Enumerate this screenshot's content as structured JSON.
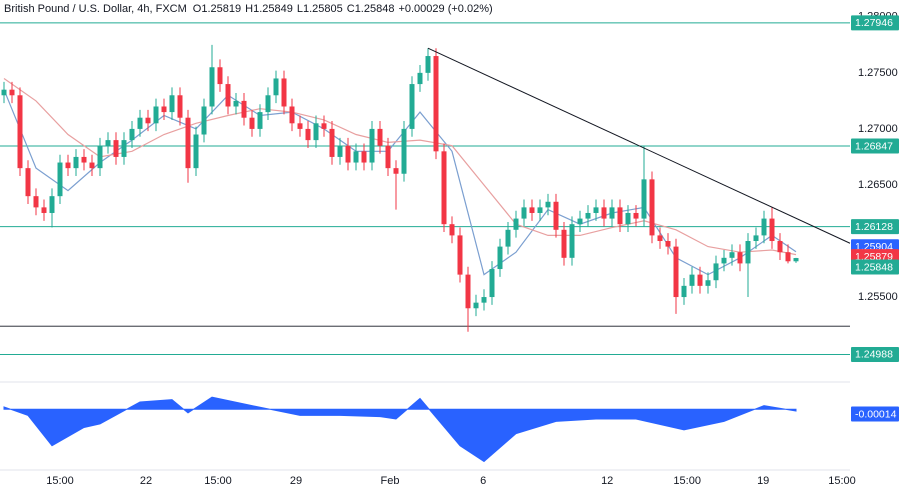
{
  "chart_data": {
    "type": "candlestick",
    "title": "British Pound / U.S. Dollar, 4h, FXCM",
    "ohlc_labels": [
      "O",
      "H",
      "L",
      "C"
    ],
    "change": "+0.00029 (+0.02%)",
    "up_color": "#22ab94",
    "down_color": "#f23645",
    "open": [
      1.273,
      1.2735,
      1.273,
      1.2665,
      1.264,
      1.263,
      1.2625,
      1.264,
      1.267,
      1.2665,
      1.2675,
      1.267,
      1.2665,
      1.2685,
      1.269,
      1.2675,
      1.269,
      1.27,
      1.271,
      1.2705,
      1.272,
      1.2715,
      1.273,
      1.271,
      1.2665,
      1.2695,
      1.272,
      1.2755,
      1.274,
      1.272,
      1.2725,
      1.271,
      1.27,
      1.2715,
      1.273,
      1.2745,
      1.272,
      1.2705,
      1.27,
      1.269,
      1.2705,
      1.27,
      1.2675,
      1.2685,
      1.267,
      1.268,
      1.267,
      1.27,
      1.2685,
      1.2665,
      1.266,
      1.27,
      1.274,
      1.275,
      1.2765,
      1.268,
      1.2615,
      1.2605,
      1.257,
      1.254,
      1.2545,
      1.255,
      1.2575,
      1.2595,
      1.261,
      1.262,
      1.263,
      1.2625,
      1.263,
      1.2635,
      1.261,
      1.2585,
      1.2615,
      1.262,
      1.2625,
      1.263,
      1.262,
      1.263,
      1.2615,
      1.2625,
      1.262,
      1.2655,
      1.2605,
      1.26,
      1.2595,
      1.255,
      1.256,
      1.257,
      1.256,
      1.2565,
      1.258,
      1.2585,
      1.259,
      1.258,
      1.26,
      1.2605,
      1.262,
      1.26,
      1.259,
      1.25819
    ],
    "high": [
      1.2742,
      1.2742,
      1.2737,
      1.2672,
      1.2647,
      1.2637,
      1.2647,
      1.2677,
      1.2677,
      1.2682,
      1.2682,
      1.2677,
      1.2692,
      1.2697,
      1.2697,
      1.2697,
      1.2707,
      1.2717,
      1.2717,
      1.2727,
      1.2727,
      1.2737,
      1.2737,
      1.2717,
      1.2702,
      1.2727,
      1.2775,
      1.2762,
      1.2747,
      1.2732,
      1.2732,
      1.2717,
      1.2722,
      1.2737,
      1.2752,
      1.2752,
      1.2727,
      1.2712,
      1.2707,
      1.2712,
      1.2712,
      1.2707,
      1.2692,
      1.2692,
      1.2687,
      1.2687,
      1.2707,
      1.2707,
      1.2692,
      1.2672,
      1.2707,
      1.2747,
      1.2757,
      1.2772,
      1.2772,
      1.2687,
      1.2622,
      1.2612,
      1.2577,
      1.2552,
      1.2557,
      1.2582,
      1.2602,
      1.2617,
      1.2627,
      1.2637,
      1.2637,
      1.2637,
      1.2642,
      1.2642,
      1.2617,
      1.2622,
      1.2627,
      1.2632,
      1.2637,
      1.2637,
      1.2637,
      1.2637,
      1.2632,
      1.2632,
      1.2685,
      1.2662,
      1.2612,
      1.2607,
      1.2602,
      1.2567,
      1.2577,
      1.2577,
      1.2572,
      1.2587,
      1.2592,
      1.2597,
      1.2597,
      1.2607,
      1.2612,
      1.2627,
      1.263,
      1.2607,
      1.2597,
      1.25849
    ],
    "low": [
      1.2723,
      1.2723,
      1.2658,
      1.2633,
      1.2623,
      1.2618,
      1.2612,
      1.2633,
      1.2658,
      1.2658,
      1.2663,
      1.2658,
      1.2658,
      1.2678,
      1.2668,
      1.2668,
      1.2683,
      1.2693,
      1.2698,
      1.2698,
      1.2708,
      1.2708,
      1.2703,
      1.2652,
      1.2658,
      1.2688,
      1.2713,
      1.2733,
      1.2713,
      1.2713,
      1.2703,
      1.2693,
      1.2693,
      1.2708,
      1.2723,
      1.2713,
      1.2698,
      1.2693,
      1.2683,
      1.2683,
      1.2693,
      1.2668,
      1.2668,
      1.2663,
      1.2663,
      1.2663,
      1.2663,
      1.2678,
      1.2658,
      1.2628,
      1.2653,
      1.2693,
      1.2733,
      1.2743,
      1.2673,
      1.2608,
      1.2598,
      1.2563,
      1.2519,
      1.2533,
      1.2538,
      1.2543,
      1.2568,
      1.2588,
      1.2603,
      1.2613,
      1.2618,
      1.2618,
      1.2623,
      1.2603,
      1.2578,
      1.2578,
      1.2608,
      1.2613,
      1.2618,
      1.2613,
      1.2613,
      1.2608,
      1.2608,
      1.2613,
      1.2613,
      1.2598,
      1.2593,
      1.2588,
      1.2535,
      1.2543,
      1.2553,
      1.2553,
      1.2553,
      1.2558,
      1.2573,
      1.2578,
      1.2573,
      1.255,
      1.2593,
      1.2598,
      1.2593,
      1.2583,
      1.258,
      1.25805
    ],
    "close": [
      1.2735,
      1.273,
      1.2665,
      1.264,
      1.263,
      1.2625,
      1.264,
      1.267,
      1.2665,
      1.2675,
      1.267,
      1.2665,
      1.2685,
      1.269,
      1.2675,
      1.269,
      1.27,
      1.271,
      1.2705,
      1.272,
      1.2715,
      1.273,
      1.271,
      1.2665,
      1.2695,
      1.272,
      1.2755,
      1.274,
      1.272,
      1.2725,
      1.271,
      1.27,
      1.2715,
      1.273,
      1.2745,
      1.272,
      1.2705,
      1.27,
      1.269,
      1.2705,
      1.27,
      1.2675,
      1.2685,
      1.267,
      1.268,
      1.267,
      1.27,
      1.2685,
      1.2665,
      1.266,
      1.27,
      1.274,
      1.275,
      1.2765,
      1.268,
      1.2615,
      1.2605,
      1.257,
      1.254,
      1.2545,
      1.255,
      1.2575,
      1.2595,
      1.261,
      1.262,
      1.263,
      1.2625,
      1.263,
      1.2635,
      1.261,
      1.2585,
      1.2615,
      1.262,
      1.2625,
      1.263,
      1.262,
      1.263,
      1.2615,
      1.2625,
      1.262,
      1.2655,
      1.2605,
      1.26,
      1.2595,
      1.255,
      1.256,
      1.257,
      1.256,
      1.2565,
      1.258,
      1.2585,
      1.259,
      1.258,
      1.26,
      1.2605,
      1.262,
      1.26,
      1.259,
      1.25819,
      1.25848
    ],
    "xlim": [
      -0.5,
      105.75
    ],
    "xticks": [
      {
        "value": 7,
        "label": "15:00"
      },
      22,
      {
        "value": 26.75,
        "label": "15:00"
      },
      29,
      {
        "value": 48.25,
        "label": "Feb"
      },
      6,
      12,
      {
        "value": 85.4,
        "label": "15:00"
      },
      19,
      {
        "value": 104.75,
        "label": "15:00"
      }
    ],
    "xtick_positions": [
      7,
      17.75,
      26.75,
      36.5,
      48.25,
      59.9,
      75.4,
      85.4,
      94.9,
      104.75
    ],
    "ylim": [
      1.2476,
      1.2815
    ],
    "yticks": [
      {
        "value": 1.28,
        "label": "1.28000"
      },
      {
        "value": 1.275,
        "label": "1.27500"
      },
      {
        "value": 1.27,
        "label": "1.27000"
      },
      {
        "value": 1.265,
        "label": "1.26500"
      },
      {
        "value": 1.255,
        "label": "1.25500"
      }
    ],
    "levels": [
      {
        "value": 1.27946,
        "color": "#22ab94"
      },
      {
        "value": 1.26847,
        "color": "#22ab94"
      },
      {
        "value": 1.26128,
        "color": "#22ab94"
      },
      {
        "value": 1.24988,
        "color": "#22ab94"
      }
    ],
    "support": {
      "value": 1.2524,
      "color": "#131722"
    },
    "trendline": {
      "x": [
        53,
        105.75
      ],
      "values": [
        1.2772,
        1.2598
      ],
      "color": "#131722"
    },
    "moving_averages": [
      {
        "color": "#7b9fd0",
        "badge_color": "#2962ff",
        "x": [
          0,
          4,
          8,
          12,
          16,
          20,
          24,
          28,
          32,
          36,
          40,
          44,
          48,
          52,
          56,
          60,
          64,
          68,
          72,
          76,
          80,
          84,
          88,
          92,
          96,
          99
        ],
        "values": [
          1.2735,
          1.2665,
          1.2645,
          1.267,
          1.269,
          1.2712,
          1.27,
          1.273,
          1.2712,
          1.2715,
          1.27,
          1.268,
          1.268,
          1.2715,
          1.268,
          1.257,
          1.259,
          1.2628,
          1.2615,
          1.2625,
          1.263,
          1.2585,
          1.257,
          1.2585,
          1.2605,
          1.25904
        ]
      },
      {
        "color": "#e8a0a0",
        "badge_color": "#f23645",
        "x": [
          0,
          4,
          8,
          12,
          16,
          20,
          24,
          28,
          32,
          36,
          40,
          44,
          48,
          52,
          56,
          60,
          64,
          68,
          72,
          76,
          80,
          84,
          88,
          92,
          96,
          99
        ],
        "values": [
          1.2745,
          1.2725,
          1.2695,
          1.2675,
          1.268,
          1.2695,
          1.2705,
          1.2712,
          1.2718,
          1.2715,
          1.2708,
          1.2695,
          1.2688,
          1.269,
          1.2685,
          1.265,
          1.2615,
          1.2605,
          1.2605,
          1.2612,
          1.2618,
          1.261,
          1.2595,
          1.259,
          1.2592,
          1.25879
        ]
      }
    ],
    "oscillator": {
      "type": "area",
      "color": "#2962ff",
      "y2lim": [
        -0.005,
        0.002
      ],
      "x": [
        0,
        3,
        6,
        10,
        12,
        17,
        21,
        23,
        26,
        31,
        37,
        42,
        47,
        49,
        52,
        57,
        60,
        64,
        69,
        74,
        79,
        85,
        90,
        95,
        99
      ],
      "values": [
        0.0002,
        -0.0005,
        -0.003,
        -0.0015,
        -0.0012,
        0.0006,
        0.0008,
        -0.0003,
        0.001,
        0.0003,
        -0.0005,
        -0.0005,
        -0.0006,
        -0.0008,
        0.0009,
        -0.003,
        -0.0043,
        -0.002,
        -0.001,
        -0.0008,
        -0.0008,
        -0.0017,
        -0.001,
        0.0003,
        -0.00014
      ]
    }
  }
}
